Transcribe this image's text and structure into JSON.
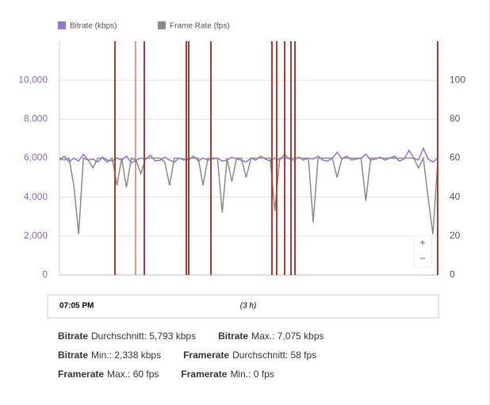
{
  "chart_data": {
    "type": "line",
    "categories": [
      null,
      null,
      null,
      null,
      null,
      null,
      null,
      null,
      null,
      null,
      null,
      null,
      null,
      null,
      null,
      null,
      null,
      null,
      null,
      null,
      null,
      null,
      null,
      null,
      null,
      null,
      null,
      null,
      null,
      null,
      null,
      null,
      null,
      null,
      null,
      null,
      null,
      null,
      null,
      null,
      null,
      null,
      null,
      null,
      null,
      null,
      null,
      null,
      null,
      null,
      null,
      null,
      null,
      null,
      null,
      null,
      null,
      null,
      null,
      null,
      null,
      null,
      null,
      null,
      null,
      null,
      null,
      null,
      null,
      null,
      null,
      null,
      null,
      null,
      null,
      null,
      null,
      null,
      null,
      null
    ],
    "series": [
      {
        "name": "Bitrate (kbps)",
        "color": "#9575cd",
        "values": [
          5900,
          6100,
          5800,
          6000,
          5850,
          6200,
          5900,
          5950,
          5800,
          6050,
          5900,
          5850,
          6000,
          5900,
          6100,
          5750,
          5900,
          6000,
          5950,
          6150,
          5850,
          5900,
          6050,
          5900,
          5800,
          6000,
          5950,
          5900,
          6100,
          5850,
          6000,
          5900,
          5950,
          6000,
          5850,
          5900,
          6050,
          5950,
          5900,
          5800,
          6000,
          5900,
          6100,
          5950,
          5850,
          6000,
          5900,
          6200,
          5950,
          5900,
          6050,
          5900,
          6000,
          5950,
          6100,
          5900,
          5850,
          6000,
          6300,
          5950,
          6100,
          5900,
          5950,
          6000,
          6200,
          5900,
          5950,
          6050,
          5900,
          6000,
          6100,
          5850,
          5950,
          6400,
          6000,
          5900,
          6500,
          5950,
          5800,
          6000
        ]
      },
      {
        "name": "Frame Rate (fps)",
        "color": "#8a8a8a",
        "axis": "y2",
        "values": [
          60,
          59,
          60,
          46,
          21,
          60,
          59,
          55,
          60,
          60,
          58,
          60,
          46,
          60,
          45,
          60,
          59,
          52,
          60,
          60,
          60,
          60,
          58,
          46,
          60,
          60,
          59,
          60,
          60,
          60,
          46,
          60,
          60,
          60,
          32,
          60,
          48,
          60,
          60,
          50,
          60,
          60,
          60,
          60,
          60,
          33,
          60,
          60,
          60,
          60,
          60,
          60,
          60,
          27,
          60,
          60,
          60,
          60,
          50,
          60,
          60,
          60,
          60,
          60,
          38,
          60,
          60,
          60,
          60,
          60,
          60,
          60,
          60,
          60,
          60,
          55,
          60,
          40,
          21,
          58
        ]
      }
    ],
    "ylim": [
      0,
      12000
    ],
    "yticks": [
      0,
      {
        "value": 2000,
        "label": "2,000"
      },
      {
        "value": 4000,
        "label": "4,000"
      },
      {
        "value": 6000,
        "label": "6,000"
      },
      {
        "value": 8000,
        "label": "8,000"
      },
      {
        "value": 10000,
        "label": "10,000"
      }
    ],
    "y2lim": [
      0,
      120
    ],
    "y2ticks": [
      0,
      20,
      40,
      60,
      80,
      100
    ],
    "grid": true,
    "timeline": {
      "start": "07:05 PM",
      "span": "(3 h)"
    },
    "controls": {
      "zoom_in": "+",
      "zoom_out": "−"
    },
    "stats": [
      [
        {
          "label": "Bitrate",
          "text": "Durchschnitt: 5,793 kbps"
        },
        {
          "label": "Bitrate",
          "text": "Max.: 7,075 kbps"
        }
      ],
      [
        {
          "label": "Bitrate",
          "text": "Min.: 2,338 kbps"
        },
        {
          "label": "Framerate",
          "text": "Durchschnitt: 58 fps"
        }
      ],
      [
        {
          "label": "Framerate",
          "text": "Max.: 60 fps"
        },
        {
          "label": "Framerate",
          "text": "Min.: 0 fps"
        }
      ]
    ]
  }
}
